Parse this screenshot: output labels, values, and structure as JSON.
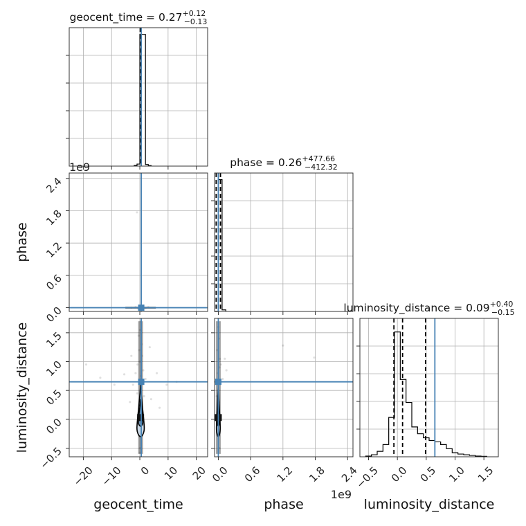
{
  "chart_data": {
    "type": "corner",
    "parameters": [
      {
        "name": "geocent_time",
        "label": "geocent_time",
        "title": {
          "base": "geocent_time = 0.27",
          "plus": "+0.12",
          "minus": "−0.13"
        },
        "median": 0.27,
        "err_plus": 0.12,
        "err_minus": 0.13,
        "truth": 0.5,
        "range": [
          -25,
          24
        ],
        "ticks": [
          -20,
          -10,
          0,
          10,
          20
        ],
        "tick_labels": [
          "−20",
          "−10",
          "0",
          "10",
          "20"
        ],
        "offset_text": ""
      },
      {
        "name": "phase",
        "label": "phase",
        "title": {
          "base": "phase = 0.26",
          "plus": "+477.66",
          "minus": "−412.32"
        },
        "median": 0.26,
        "err_plus": 477.66,
        "err_minus": 412.32,
        "truth": 0.0,
        "range": [
          -0.07,
          2.5
        ],
        "ticks": [
          0.0,
          0.6,
          1.2,
          1.8,
          2.4
        ],
        "tick_labels": [
          "0.0",
          "0.6",
          "1.2",
          "1.8",
          "2.4"
        ],
        "offset_text": "1e9"
      },
      {
        "name": "luminosity_distance",
        "label": "luminosity_distance",
        "title": {
          "base": "luminosity_distance = 0.09",
          "plus": "+0.40",
          "minus": "−0.15"
        },
        "median": 0.09,
        "err_plus": 0.4,
        "err_minus": 0.15,
        "truth": 0.65,
        "range": [
          -0.65,
          1.75
        ],
        "ticks": [
          -0.5,
          0.0,
          0.5,
          1.0,
          1.5
        ],
        "tick_labels": [
          "−0.5",
          "0.0",
          "0.5",
          "1.0",
          "1.5"
        ],
        "offset_text": ""
      }
    ],
    "histograms": [
      {
        "param": "geocent_time",
        "edges": [
          -2.0,
          -1.0,
          0.0,
          1.0,
          2.0,
          3.0,
          4.0
        ],
        "counts": [
          0.5,
          1.5,
          98,
          98,
          1.2,
          0.4
        ],
        "quantiles": [
          0.14,
          0.27,
          0.39
        ],
        "ymax": 103
      },
      {
        "param": "phase",
        "edges": [
          -0.07,
          0.0,
          0.07,
          0.14
        ],
        "counts": [
          0.2,
          100,
          1.2
        ],
        "quantiles": [
          -0.04,
          0.0,
          0.04
        ],
        "ymax": 105
      },
      {
        "param": "luminosity_distance",
        "edges": [
          -0.55,
          -0.45,
          -0.35,
          -0.25,
          -0.15,
          -0.05,
          0.05,
          0.15,
          0.25,
          0.35,
          0.45,
          0.55,
          0.65,
          0.75,
          0.85,
          0.95,
          1.05,
          1.15,
          1.25,
          1.35,
          1.45,
          1.55
        ],
        "counts": [
          0.5,
          1.5,
          4,
          9,
          29,
          92,
          57,
          40,
          22,
          17,
          14,
          12,
          11,
          9,
          6,
          3,
          2,
          1.5,
          1,
          0.5,
          0.3
        ],
        "quantiles": [
          -0.06,
          0.09,
          0.49
        ],
        "ymax": 102
      }
    ],
    "scatter_samples": {
      "geocent_time_vs_phase": [
        [
          0.2,
          0.0
        ],
        [
          -1.5,
          0.01
        ],
        [
          2.0,
          -0.01
        ],
        [
          1.0,
          0.02
        ],
        [
          -0.5,
          -0.02
        ],
        [
          0.6,
          0.0
        ],
        [
          3.0,
          0.01
        ],
        [
          -3.0,
          0.0
        ],
        [
          -1.0,
          1.77
        ]
      ],
      "geocent_time_vs_luminosity_distance": [
        [
          0.3,
          1.7
        ],
        [
          0.1,
          1.55
        ],
        [
          -0.4,
          1.45
        ],
        [
          0.6,
          1.3
        ],
        [
          -0.2,
          1.2
        ],
        [
          0.8,
          1.1
        ],
        [
          0.0,
          1.0
        ],
        [
          -0.8,
          0.95
        ],
        [
          1.2,
          0.85
        ],
        [
          -1.5,
          0.8
        ],
        [
          0.4,
          0.75
        ],
        [
          2.0,
          0.7
        ],
        [
          -2.4,
          0.6
        ],
        [
          -5.5,
          0.78
        ],
        [
          -9.0,
          0.6
        ],
        [
          -14.0,
          0.72
        ],
        [
          -19.0,
          0.95
        ],
        [
          6.0,
          0.8
        ],
        [
          9.5,
          0.6
        ],
        [
          13.0,
          0.65
        ],
        [
          4.0,
          0.35
        ],
        [
          -3.5,
          0.3
        ],
        [
          1.5,
          0.4
        ],
        [
          -0.9,
          0.45
        ],
        [
          0.5,
          0.2
        ],
        [
          -0.3,
          0.1
        ],
        [
          0.2,
          -0.1
        ],
        [
          -0.1,
          -0.3
        ],
        [
          0.1,
          -0.5
        ],
        [
          0.0,
          -0.58
        ],
        [
          3.5,
          1.25
        ],
        [
          -3.0,
          1.1
        ],
        [
          7.0,
          0.2
        ]
      ],
      "phase_vs_luminosity_distance": [
        [
          0.0,
          1.6
        ],
        [
          0.01,
          1.4
        ],
        [
          -0.02,
          1.2
        ],
        [
          0.03,
          1.05
        ],
        [
          0.02,
          0.9
        ],
        [
          -0.01,
          0.8
        ],
        [
          0.05,
          0.95
        ],
        [
          0.08,
          0.7
        ],
        [
          0.0,
          0.5
        ],
        [
          0.01,
          0.3
        ],
        [
          0.0,
          0.1
        ],
        [
          -0.01,
          -0.1
        ],
        [
          0.0,
          -0.3
        ],
        [
          0.02,
          -0.5
        ],
        [
          0.12,
          1.05
        ],
        [
          0.15,
          0.85
        ],
        [
          1.2,
          1.28
        ],
        [
          1.78,
          1.07
        ],
        [
          0.02,
          0.05
        ],
        [
          -0.03,
          0.4
        ]
      ]
    },
    "contours_2d": {
      "geocent_time_vs_luminosity_distance": {
        "peak": [
          0.27,
          0.03
        ],
        "outer": {
          "x_halfwidth": 1.3,
          "y_range": [
            -0.3,
            0.6
          ]
        },
        "inner": {
          "x_halfwidth": 0.8,
          "y_range": [
            -0.12,
            0.35
          ]
        }
      },
      "phase_vs_luminosity_distance": {
        "peak": [
          0.0,
          0.03
        ],
        "outer": {
          "x_halfwidth": 0.035,
          "y_range": [
            -0.3,
            0.6
          ]
        },
        "inner": {
          "x_halfwidth": 0.02,
          "y_range": [
            -0.12,
            0.35
          ]
        }
      }
    },
    "truth_color": "#4682b4",
    "grid": true
  }
}
